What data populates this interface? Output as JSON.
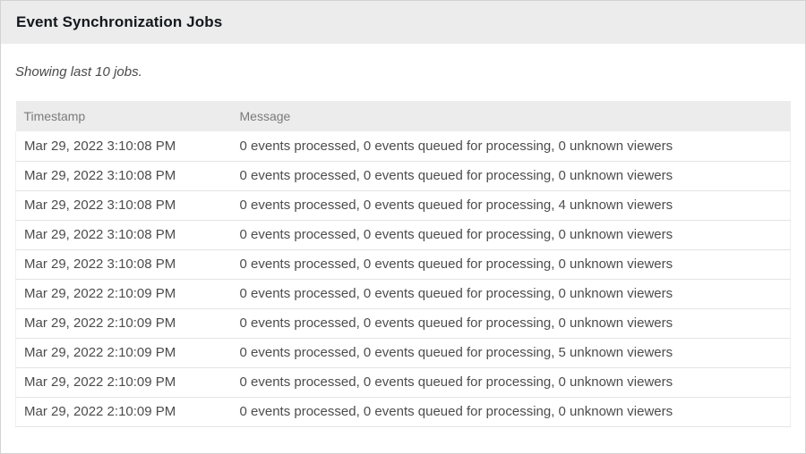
{
  "header": {
    "title": "Event Synchronization Jobs"
  },
  "subtitle": "Showing last 10 jobs.",
  "table": {
    "columns": [
      "Timestamp",
      "Message"
    ],
    "rows": [
      {
        "timestamp": "Mar 29, 2022 3:10:08 PM",
        "message": "0 events processed, 0 events queued for processing, 0 unknown viewers"
      },
      {
        "timestamp": "Mar 29, 2022 3:10:08 PM",
        "message": "0 events processed, 0 events queued for processing, 0 unknown viewers"
      },
      {
        "timestamp": "Mar 29, 2022 3:10:08 PM",
        "message": "0 events processed, 0 events queued for processing, 4 unknown viewers"
      },
      {
        "timestamp": "Mar 29, 2022 3:10:08 PM",
        "message": "0 events processed, 0 events queued for processing, 0 unknown viewers"
      },
      {
        "timestamp": "Mar 29, 2022 3:10:08 PM",
        "message": "0 events processed, 0 events queued for processing, 0 unknown viewers"
      },
      {
        "timestamp": "Mar 29, 2022 2:10:09 PM",
        "message": "0 events processed, 0 events queued for processing, 0 unknown viewers"
      },
      {
        "timestamp": "Mar 29, 2022 2:10:09 PM",
        "message": "0 events processed, 0 events queued for processing, 0 unknown viewers"
      },
      {
        "timestamp": "Mar 29, 2022 2:10:09 PM",
        "message": "0 events processed, 0 events queued for processing, 5 unknown viewers"
      },
      {
        "timestamp": "Mar 29, 2022 2:10:09 PM",
        "message": "0 events processed, 0 events queued for processing, 0 unknown viewers"
      },
      {
        "timestamp": "Mar 29, 2022 2:10:09 PM",
        "message": "0 events processed, 0 events queued for processing, 0 unknown viewers"
      }
    ]
  },
  "colors": {
    "band_bg": "#ececec",
    "table_header_bg": "#ececec",
    "row_border": "#e4e4e4",
    "title_text": "#14181c",
    "cell_text": "#4c4c4c",
    "column_header_text": "#7b7b7b"
  }
}
